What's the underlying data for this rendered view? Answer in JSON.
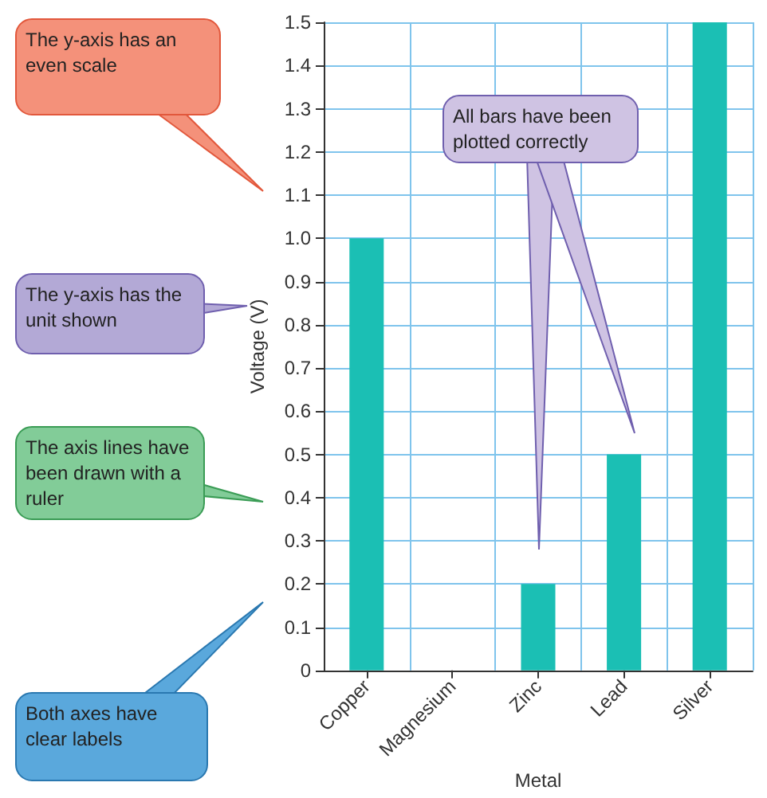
{
  "chart_data": {
    "type": "bar",
    "categories": [
      "Copper",
      "Magnesium",
      "Zinc",
      "Lead",
      "Silver"
    ],
    "values": [
      1.0,
      0,
      0.2,
      0.5,
      1.5
    ],
    "color": "#1bbfb4",
    "xlabel": "Metal",
    "ylabel": "Voltage (V)",
    "ylim": [
      0,
      1.5
    ],
    "yticks": [
      0,
      0.1,
      0.2,
      0.3,
      0.4,
      0.5,
      0.6,
      0.7,
      0.8,
      0.9,
      {
        "value": 1,
        "label": "1.0"
      },
      1.1,
      1.2,
      1.3,
      1.4,
      1.5
    ],
    "grid": true,
    "annotations": [
      "The y-axis has an even scale",
      "The y-axis has the unit shown",
      "The axis lines have been drawn with a ruler",
      "Both axes have clear labels",
      "All bars have been plotted correctly"
    ]
  }
}
